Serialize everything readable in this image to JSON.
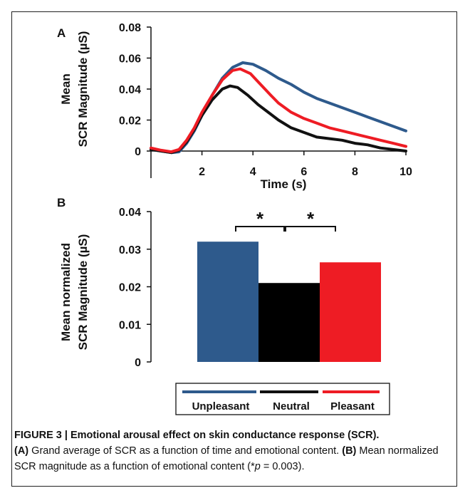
{
  "chart_data": [
    {
      "panel": "A",
      "type": "line",
      "title": "",
      "ylabel_line1": "Mean",
      "ylabel_line2": "SCR Magnitude (µS)",
      "xlabel": "Time (s)",
      "xlim": [
        0,
        10
      ],
      "ylim": [
        0,
        0.08
      ],
      "x_ticks": [
        2,
        4,
        6,
        8,
        10
      ],
      "y_ticks": [
        0,
        0.02,
        0.04,
        0.06,
        0.08
      ],
      "x_tick_labels": [
        "2",
        "4",
        "6",
        "8",
        "10"
      ],
      "y_tick_labels": [
        "0",
        "0.02",
        "0.04",
        "0.06",
        "0.08"
      ],
      "series": [
        {
          "name": "Unpleasant",
          "color": "#2e5a8c",
          "x": [
            0,
            0.4,
            0.8,
            1.1,
            1.4,
            1.7,
            2.0,
            2.4,
            2.8,
            3.2,
            3.6,
            4.0,
            4.5,
            5.0,
            5.5,
            6.0,
            6.5,
            7.0,
            7.5,
            8.0,
            8.5,
            9.0,
            9.5,
            10.0
          ],
          "y": [
            0.001,
            0.0,
            -0.001,
            -0.0005,
            0.005,
            0.013,
            0.023,
            0.036,
            0.047,
            0.054,
            0.057,
            0.056,
            0.052,
            0.047,
            0.043,
            0.038,
            0.034,
            0.031,
            0.028,
            0.025,
            0.022,
            0.019,
            0.016,
            0.013
          ]
        },
        {
          "name": "Neutral",
          "color": "#111111",
          "x": [
            0,
            0.4,
            0.8,
            1.1,
            1.4,
            1.7,
            2.0,
            2.4,
            2.8,
            3.1,
            3.4,
            3.8,
            4.2,
            4.6,
            5.0,
            5.5,
            6.0,
            6.5,
            7.0,
            7.5,
            8.0,
            8.5,
            9.0,
            9.5,
            10.0
          ],
          "y": [
            0.001,
            0.0,
            -0.001,
            0.0005,
            0.006,
            0.014,
            0.023,
            0.033,
            0.04,
            0.042,
            0.041,
            0.036,
            0.03,
            0.025,
            0.02,
            0.015,
            0.012,
            0.009,
            0.008,
            0.007,
            0.005,
            0.004,
            0.002,
            0.001,
            0.0
          ]
        },
        {
          "name": "Pleasant",
          "color": "#ee1c24",
          "x": [
            0,
            0.4,
            0.8,
            1.1,
            1.4,
            1.7,
            2.0,
            2.4,
            2.8,
            3.2,
            3.5,
            3.9,
            4.3,
            4.7,
            5.0,
            5.5,
            6.0,
            6.5,
            7.0,
            7.5,
            8.0,
            8.5,
            9.0,
            9.5,
            10.0
          ],
          "y": [
            0.002,
            0.0005,
            -0.0005,
            0.001,
            0.007,
            0.015,
            0.025,
            0.036,
            0.046,
            0.052,
            0.053,
            0.05,
            0.043,
            0.036,
            0.031,
            0.025,
            0.021,
            0.018,
            0.015,
            0.013,
            0.011,
            0.009,
            0.007,
            0.005,
            0.003
          ]
        }
      ]
    },
    {
      "panel": "B",
      "type": "bar",
      "title": "",
      "ylabel_line1": "Mean normalized",
      "ylabel_line2": "SCR Magnitude (µS)",
      "xlabel": "",
      "ylim": [
        0,
        0.04
      ],
      "y_ticks": [
        0,
        0.01,
        0.02,
        0.03,
        0.04
      ],
      "y_tick_labels": [
        "0",
        "0.01",
        "0.02",
        "0.03",
        "0.04"
      ],
      "categories": [
        "Unpleasant",
        "Neutral",
        "Pleasant"
      ],
      "values": [
        0.032,
        0.021,
        0.0265
      ],
      "colors": [
        "#2e5a8c",
        "#000000",
        "#ee1c24"
      ],
      "significance": [
        {
          "pair": [
            0,
            1
          ],
          "label": "*"
        },
        {
          "pair": [
            1,
            2
          ],
          "label": "*"
        }
      ]
    }
  ],
  "panel_labels": {
    "a": "A",
    "b": "B"
  },
  "legend": {
    "placement": "bottom",
    "entries": [
      {
        "label": "Unpleasant",
        "color": "#2e5a8c"
      },
      {
        "label": "Neutral",
        "color": "#111111"
      },
      {
        "label": "Pleasant",
        "color": "#ee1c24"
      }
    ]
  },
  "caption": {
    "title": "FIGURE 3 | Emotional arousal effect on skin conductance response (SCR).",
    "label_a": "(A)",
    "text_a": " Grand average of SCR as a function of time and emotional content. ",
    "label_b": "(B)",
    "text_b": " Mean normalized SCR magnitude as a function of emotional content (*",
    "p_symbol": "p",
    "text_end": " = 0.003)."
  }
}
